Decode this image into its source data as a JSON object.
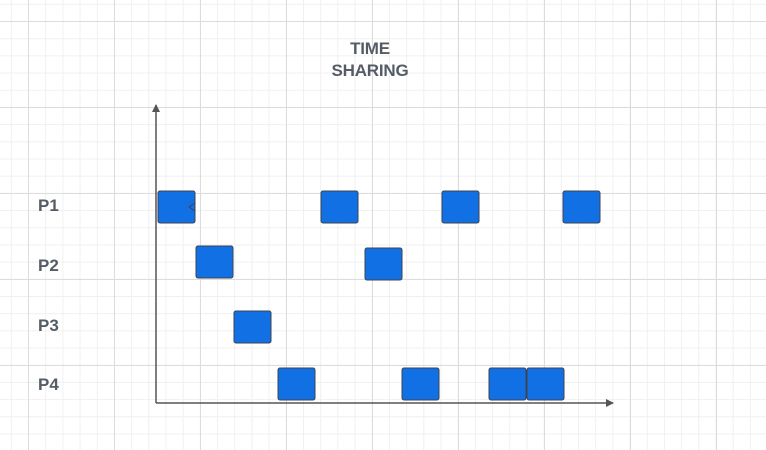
{
  "diagram": {
    "title_line1": "TIME",
    "title_line2": "SHARING",
    "rows": [
      {
        "label": "P1"
      },
      {
        "label": "P2"
      },
      {
        "label": "P3"
      },
      {
        "label": "P4"
      }
    ],
    "colors": {
      "block_fill": "#1170e4",
      "block_stroke": "#3d4450",
      "axis": "#555555",
      "text": "#555c66"
    },
    "blocks": [
      {
        "process": "P1",
        "slot": 1
      },
      {
        "process": "P2",
        "slot": 2
      },
      {
        "process": "P3",
        "slot": 3
      },
      {
        "process": "P4",
        "slot": 4
      },
      {
        "process": "P1",
        "slot": 5
      },
      {
        "process": "P2",
        "slot": 6
      },
      {
        "process": "P4",
        "slot": 7
      },
      {
        "process": "P1",
        "slot": 8
      },
      {
        "process": "P4",
        "slot": 9
      },
      {
        "process": "P4",
        "slot": 10
      },
      {
        "process": "P1",
        "slot": 11
      }
    ]
  }
}
